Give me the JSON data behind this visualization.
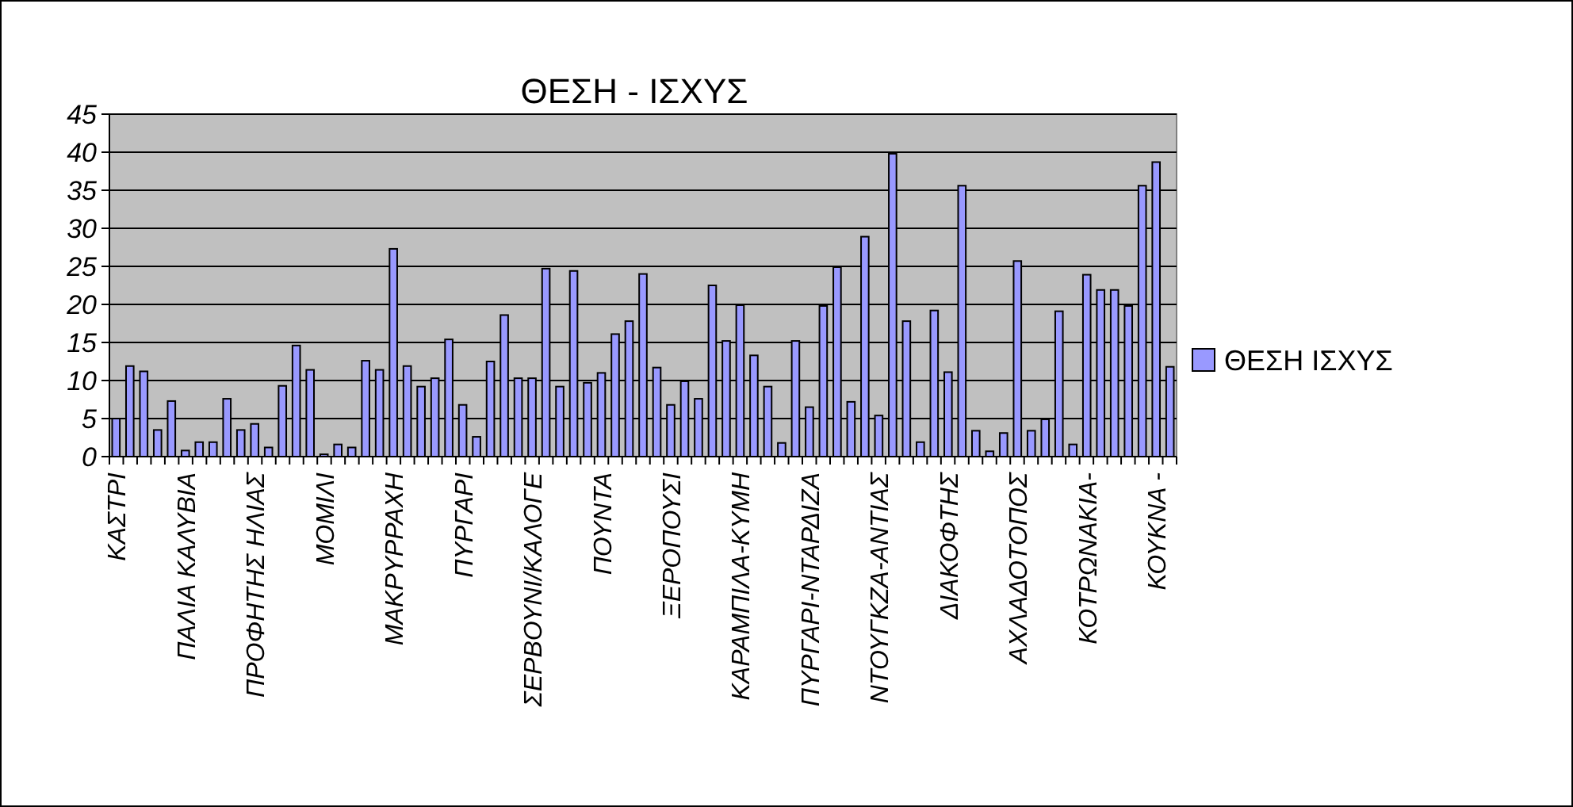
{
  "chart_data": {
    "type": "bar",
    "title": "ΘΕΣΗ - ΙΣΧΥΣ",
    "categories": [
      "ΚΑΣΤΡΙ",
      null,
      null,
      null,
      null,
      "ΠΑΛΙΑ ΚΑΛΥΒΙΑ",
      null,
      null,
      null,
      null,
      "ΠΡΟΦΗΤΗΣ ΗΛΙΑΣ",
      null,
      null,
      null,
      null,
      "ΜΟΜΙΛΙ",
      null,
      null,
      null,
      null,
      "ΜΑΚΡΥΡΡΑΧΗ",
      null,
      null,
      null,
      null,
      "ΠΥΡΓΑΡΙ",
      null,
      null,
      null,
      null,
      "ΣΕΡΒΟΥΝΙ/ΚΑΛΟΓΕ",
      null,
      null,
      null,
      null,
      "ΠΟΥΝΤΑ",
      null,
      null,
      null,
      null,
      "ΞΕΡΟΠΟΥΣΙ",
      null,
      null,
      null,
      null,
      "ΚΑΡΑΜΠΙΛΑ-ΚΥΜΗ",
      null,
      null,
      null,
      null,
      "ΠΥΡΓΑΡΙ-ΝΤΑΡΔΙΖΑ",
      null,
      null,
      null,
      null,
      "ΝΤΟΥΓΚΖΑ-ΑΝΤΙΑΣ",
      null,
      null,
      null,
      null,
      "ΔΙΑΚΟΦΤΗΣ",
      null,
      null,
      null,
      null,
      "ΑΧΛΑΔΟΤΟΠΟΣ",
      null,
      null,
      null,
      null,
      "ΚΟΤΡΩΝΑΚΙΑ-",
      null,
      null,
      null,
      null,
      "ΚΟΥΚΝΑ -",
      null
    ],
    "series": [
      {
        "name": "ΘΕΣΗ ΙΣΧΥΣ",
        "color": "#9999ff",
        "values": [
          5.0,
          11.9,
          11.2,
          3.5,
          7.3,
          0.8,
          1.9,
          1.9,
          7.6,
          3.5,
          4.3,
          1.2,
          9.3,
          14.6,
          11.4,
          0.3,
          1.6,
          1.2,
          12.6,
          11.4,
          27.3,
          11.9,
          9.2,
          10.3,
          15.4,
          6.8,
          2.6,
          12.5,
          18.6,
          10.3,
          10.3,
          24.7,
          9.2,
          24.4,
          9.7,
          11.0,
          16.1,
          17.8,
          24.0,
          11.7,
          6.8,
          9.9,
          7.6,
          22.5,
          15.2,
          19.9,
          13.3,
          9.2,
          1.8,
          15.2,
          6.5,
          19.8,
          24.9,
          7.2,
          28.9,
          5.4,
          39.8,
          17.8,
          1.9,
          19.2,
          11.1,
          35.6,
          3.4,
          0.7,
          3.1,
          25.7,
          3.4,
          4.9,
          19.1,
          1.6,
          23.9,
          21.9,
          21.9,
          19.8,
          35.6,
          38.7,
          11.8
        ]
      }
    ],
    "ylim": [
      0,
      45
    ],
    "yticks": [
      0,
      5,
      10,
      15,
      20,
      25,
      30,
      35,
      40,
      45
    ],
    "grid": "y",
    "legend": "right"
  }
}
